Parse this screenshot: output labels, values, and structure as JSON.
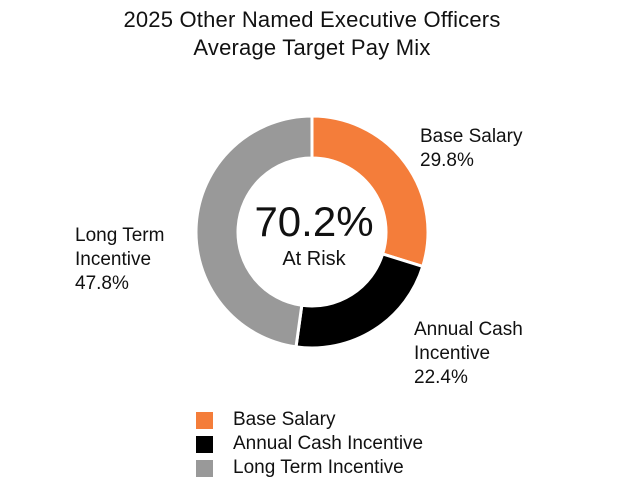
{
  "chart_data": {
    "type": "pie",
    "variant": "donut",
    "title": [
      "2025 Other Named Executive Officers",
      "Average Target Pay Mix"
    ],
    "center": {
      "value": "70.2%",
      "label": "At Risk"
    },
    "slices": [
      {
        "name": "Base Salary",
        "label_lines": [
          "Base Salary"
        ],
        "value": 29.8,
        "value_text": "29.8%",
        "color": "#f47d3a"
      },
      {
        "name": "Annual Cash Incentive",
        "label_lines": [
          "Annual Cash",
          "Incentive"
        ],
        "value": 22.4,
        "value_text": "22.4%",
        "color": "#000000"
      },
      {
        "name": "Long Term Incentive",
        "label_lines": [
          "Long Term",
          "Incentive"
        ],
        "value": 47.8,
        "value_text": "47.8%",
        "color": "#999999"
      }
    ],
    "legend": {
      "position": "bottom",
      "items": [
        {
          "label": "Base Salary",
          "color": "#f47d3a"
        },
        {
          "label": "Annual Cash Incentive",
          "color": "#000000"
        },
        {
          "label": "Long Term Incentive",
          "color": "#999999"
        }
      ]
    }
  }
}
